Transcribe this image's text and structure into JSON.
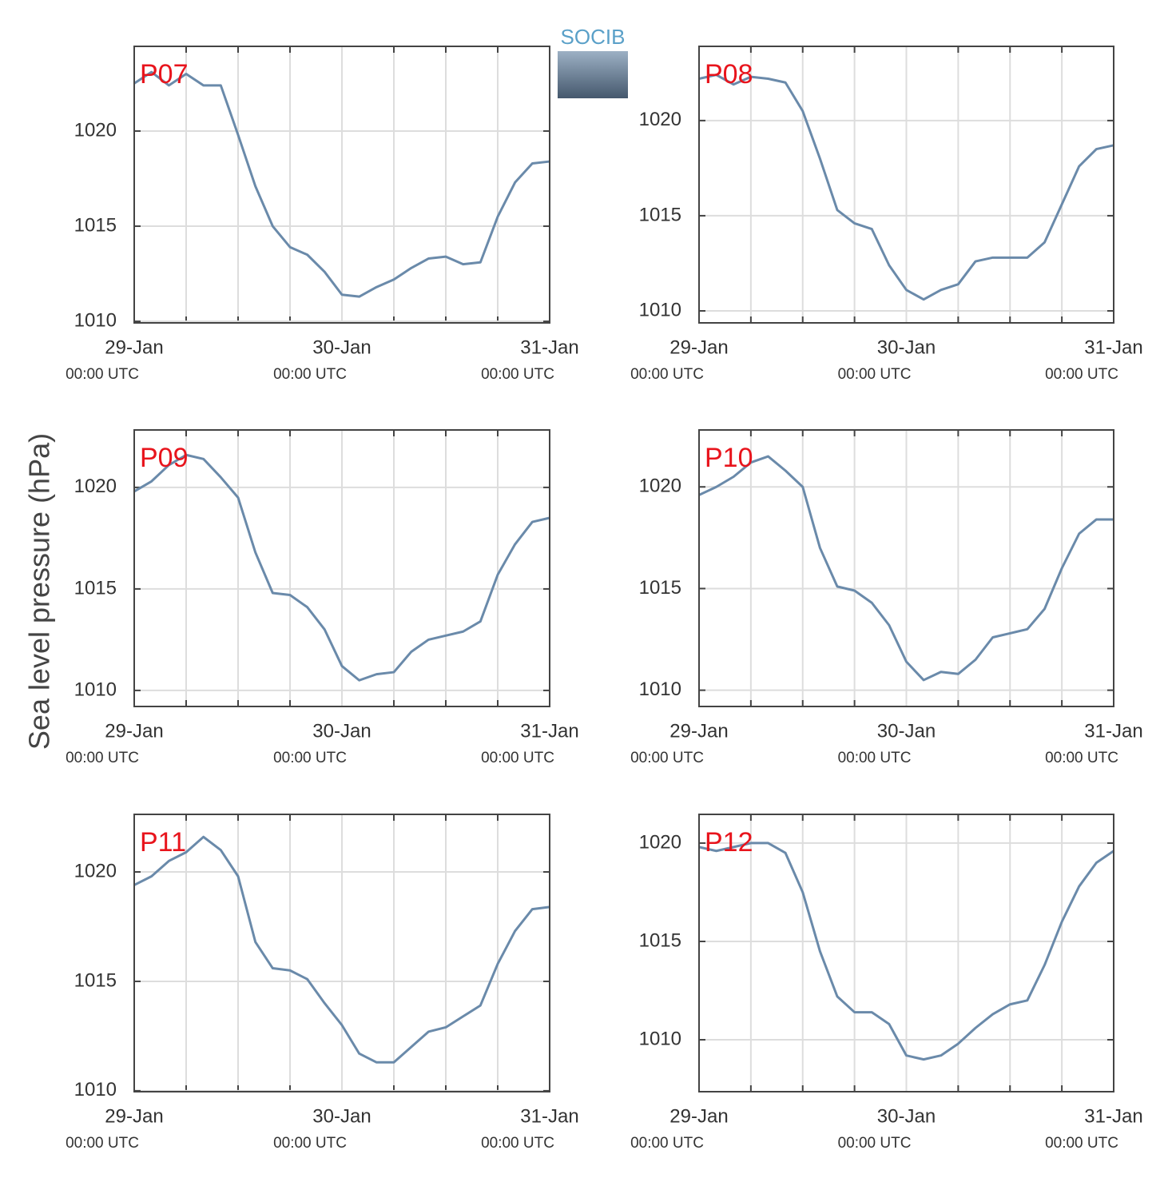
{
  "ylabel": "Sea level pressure (hPa)",
  "logo": "SOCIB",
  "chart_data": [
    {
      "type": "line",
      "title": "P07",
      "color": "#6a8aaa",
      "grid": true,
      "x": [
        0,
        2,
        4,
        6,
        8,
        10,
        12,
        14,
        16,
        18,
        20,
        22,
        24,
        26,
        28,
        30,
        32,
        34,
        36,
        38,
        40,
        42,
        44,
        46,
        48
      ],
      "values": [
        1022.5,
        1023.1,
        1022.4,
        1023.0,
        1022.4,
        1022.4,
        1019.8,
        1017.1,
        1015.0,
        1013.9,
        1013.5,
        1012.6,
        1011.4,
        1011.3,
        1011.8,
        1012.2,
        1012.8,
        1013.3,
        1013.4,
        1013.0,
        1013.1,
        1015.5,
        1017.3,
        1018.3,
        1018.4
      ],
      "xlim": [
        0,
        48
      ],
      "ylim": [
        1009.92,
        1024.45
      ],
      "yticks": [
        1010,
        1015,
        1020
      ],
      "xticks": [
        {
          "value": 0,
          "label": "29-Jan",
          "sublabel": "00:00 UTC"
        },
        {
          "value": 24,
          "label": "30-Jan",
          "sublabel": "00:00 UTC"
        },
        {
          "value": 48,
          "label": "31-Jan",
          "sublabel": "00:00 UTC"
        }
      ],
      "xgrid": [
        6,
        12,
        18,
        30,
        36,
        42
      ]
    },
    {
      "type": "line",
      "title": "P08",
      "color": "#6a8aaa",
      "grid": true,
      "x": [
        0,
        2,
        4,
        6,
        8,
        10,
        12,
        14,
        16,
        18,
        20,
        22,
        24,
        26,
        28,
        30,
        32,
        34,
        36,
        38,
        40,
        42,
        44,
        46,
        48
      ],
      "values": [
        1022.2,
        1022.4,
        1021.9,
        1022.3,
        1022.2,
        1022.0,
        1020.5,
        1018.0,
        1015.3,
        1014.6,
        1014.3,
        1012.4,
        1011.1,
        1010.6,
        1011.1,
        1011.4,
        1012.6,
        1012.8,
        1012.8,
        1012.8,
        1013.6,
        1015.6,
        1017.6,
        1018.5,
        1018.7
      ],
      "xlim": [
        0,
        48
      ],
      "ylim": [
        1009.37,
        1023.9
      ],
      "yticks": [
        1010,
        1015,
        1020
      ],
      "xticks": [
        {
          "value": 0,
          "label": "29-Jan",
          "sublabel": "00:00 UTC"
        },
        {
          "value": 24,
          "label": "30-Jan",
          "sublabel": "00:00 UTC"
        },
        {
          "value": 48,
          "label": "31-Jan",
          "sublabel": "00:00 UTC"
        }
      ],
      "xgrid": [
        6,
        12,
        18,
        30,
        36,
        42
      ]
    },
    {
      "type": "line",
      "title": "P09",
      "color": "#6a8aaa",
      "grid": true,
      "x": [
        0,
        2,
        4,
        6,
        8,
        10,
        12,
        14,
        16,
        18,
        20,
        22,
        24,
        26,
        28,
        30,
        32,
        34,
        36,
        38,
        40,
        42,
        44,
        46,
        48
      ],
      "values": [
        1019.8,
        1020.3,
        1021.1,
        1021.6,
        1021.4,
        1020.5,
        1019.5,
        1016.8,
        1014.8,
        1014.7,
        1014.1,
        1013.0,
        1011.2,
        1010.5,
        1010.8,
        1010.9,
        1011.9,
        1012.5,
        1012.7,
        1012.9,
        1013.4,
        1015.7,
        1017.2,
        1018.3,
        1018.5
      ],
      "xlim": [
        0,
        48
      ],
      "ylim": [
        1009.21,
        1022.83
      ],
      "yticks": [
        1010,
        1015,
        1020
      ],
      "xticks": [
        {
          "value": 0,
          "label": "29-Jan",
          "sublabel": "00:00 UTC"
        },
        {
          "value": 24,
          "label": "30-Jan",
          "sublabel": "00:00 UTC"
        },
        {
          "value": 48,
          "label": "31-Jan",
          "sublabel": "00:00 UTC"
        }
      ],
      "xgrid": [
        6,
        12,
        18,
        30,
        36,
        42
      ]
    },
    {
      "type": "line",
      "title": "P10",
      "color": "#6a8aaa",
      "grid": true,
      "x": [
        0,
        2,
        4,
        6,
        8,
        10,
        12,
        14,
        16,
        18,
        20,
        22,
        24,
        26,
        28,
        30,
        32,
        34,
        36,
        38,
        40,
        42,
        44,
        46,
        48
      ],
      "values": [
        1019.6,
        1020.0,
        1020.5,
        1021.2,
        1021.5,
        1020.8,
        1020.0,
        1017.0,
        1015.1,
        1014.9,
        1014.3,
        1013.2,
        1011.4,
        1010.5,
        1010.9,
        1010.8,
        1011.5,
        1012.6,
        1012.8,
        1013.0,
        1014.0,
        1016.0,
        1017.7,
        1018.4,
        1018.4
      ],
      "xlim": [
        0,
        48
      ],
      "ylim": [
        1009.2,
        1022.8
      ],
      "yticks": [
        1010,
        1015,
        1020
      ],
      "xticks": [
        {
          "value": 0,
          "label": "29-Jan",
          "sublabel": "00:00 UTC"
        },
        {
          "value": 24,
          "label": "30-Jan",
          "sublabel": "00:00 UTC"
        },
        {
          "value": 48,
          "label": "31-Jan",
          "sublabel": "00:00 UTC"
        }
      ],
      "xgrid": [
        6,
        12,
        18,
        30,
        36,
        42
      ]
    },
    {
      "type": "line",
      "title": "P11",
      "color": "#6a8aaa",
      "grid": true,
      "x": [
        0,
        2,
        4,
        6,
        8,
        10,
        12,
        14,
        16,
        18,
        20,
        22,
        24,
        26,
        28,
        30,
        32,
        34,
        36,
        38,
        40,
        42,
        44,
        46,
        48
      ],
      "values": [
        1019.4,
        1019.8,
        1020.5,
        1020.9,
        1021.6,
        1021.0,
        1019.8,
        1016.8,
        1015.6,
        1015.5,
        1015.1,
        1014.0,
        1013.0,
        1011.7,
        1011.3,
        1011.3,
        1012.0,
        1012.7,
        1012.9,
        1013.4,
        1013.9,
        1015.8,
        1017.3,
        1018.3,
        1018.4
      ],
      "xlim": [
        0,
        48
      ],
      "ylim": [
        1009.96,
        1022.63
      ],
      "yticks": [
        1010,
        1015,
        1020
      ],
      "xticks": [
        {
          "value": 0,
          "label": "29-Jan",
          "sublabel": "00:00 UTC"
        },
        {
          "value": 24,
          "label": "30-Jan",
          "sublabel": "00:00 UTC"
        },
        {
          "value": 48,
          "label": "31-Jan",
          "sublabel": "00:00 UTC"
        }
      ],
      "xgrid": [
        6,
        12,
        18,
        30,
        36,
        42
      ]
    },
    {
      "type": "line",
      "title": "P12",
      "color": "#6a8aaa",
      "grid": true,
      "x": [
        0,
        2,
        4,
        6,
        8,
        10,
        12,
        14,
        16,
        18,
        20,
        22,
        24,
        26,
        28,
        30,
        32,
        34,
        36,
        38,
        40,
        42,
        44,
        46,
        48
      ],
      "values": [
        1019.8,
        1019.6,
        1019.8,
        1020.0,
        1020.0,
        1019.5,
        1017.5,
        1014.5,
        1012.2,
        1011.4,
        1011.4,
        1010.8,
        1009.2,
        1009.0,
        1009.2,
        1009.8,
        1010.6,
        1011.3,
        1011.8,
        1012.0,
        1013.8,
        1016.0,
        1017.8,
        1019.0,
        1019.6
      ],
      "xlim": [
        0,
        48
      ],
      "ylim": [
        1007.36,
        1021.46
      ],
      "yticks": [
        1010,
        1015,
        1020
      ],
      "xticks": [
        {
          "value": 0,
          "label": "29-Jan",
          "sublabel": "00:00 UTC"
        },
        {
          "value": 24,
          "label": "30-Jan",
          "sublabel": "00:00 UTC"
        },
        {
          "value": 48,
          "label": "31-Jan",
          "sublabel": "00:00 UTC"
        }
      ],
      "xgrid": [
        6,
        12,
        18,
        30,
        36,
        42
      ]
    }
  ]
}
